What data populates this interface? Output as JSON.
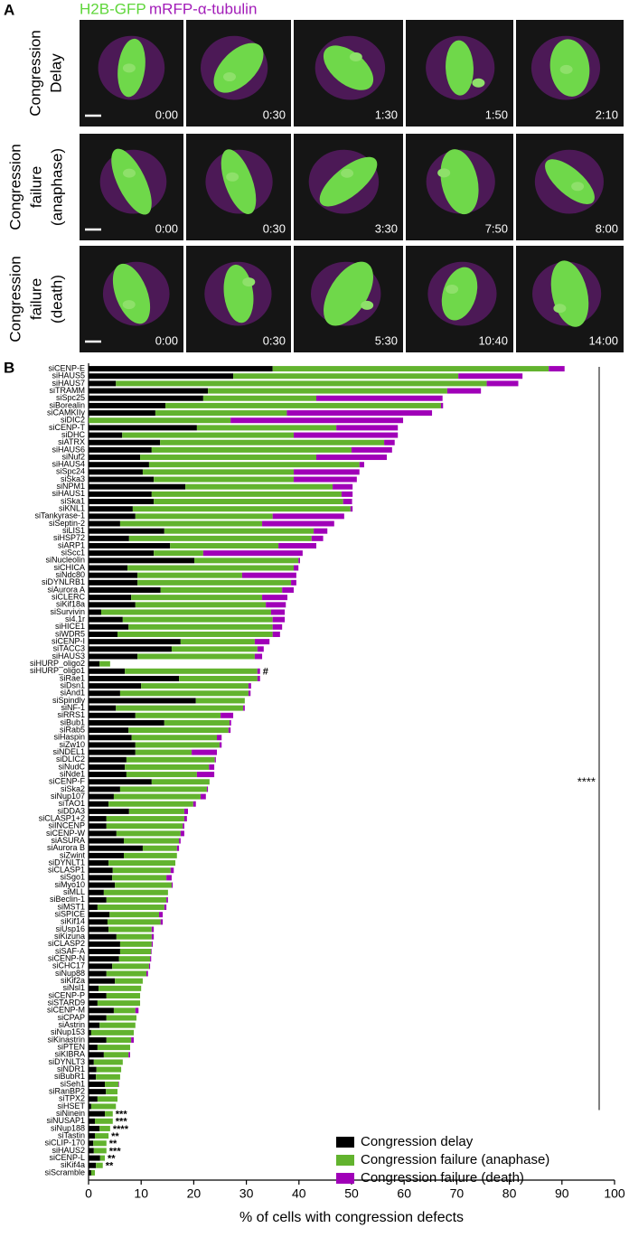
{
  "panel_a": {
    "label": "A",
    "channels": [
      {
        "name": "H2B-GFP",
        "color": "#5fd63a"
      },
      {
        "name": "mRFP-α-tubulin",
        "color": "#a21cb8"
      }
    ],
    "rows": [
      {
        "label_lines": [
          "Congression",
          "Delay"
        ],
        "times": [
          "0:00",
          "0:30",
          "1:30",
          "1:50",
          "2:10"
        ]
      },
      {
        "label_lines": [
          "Congression",
          "failure",
          "(anaphase)"
        ],
        "times": [
          "0:00",
          "0:30",
          "3:30",
          "7:50",
          "8:00"
        ]
      },
      {
        "label_lines": [
          "Congression",
          "failure",
          "(death)"
        ],
        "times": [
          "0:00",
          "0:30",
          "5:30",
          "10:40",
          "14:00"
        ]
      }
    ]
  },
  "chart_data": {
    "type": "bar",
    "orientation": "horizontal",
    "stacked": true,
    "panel_label": "B",
    "xlabel": "% of cells with congression defects",
    "xlim": [
      0,
      100
    ],
    "xticks": [
      0,
      10,
      20,
      30,
      40,
      50,
      60,
      70,
      80,
      90,
      100
    ],
    "legend": "lower right",
    "bracket_label": "****",
    "categories": [
      "siCENP-E",
      "siHAUS5",
      "siHAUS7",
      "siTRAMM",
      "siSpc25",
      "siBorealin",
      "siCAMKIIγ",
      "siDIC2",
      "siCENP-T",
      "siDHC",
      "siATRX",
      "siHAUS6",
      "siNuf2",
      "siHAUS4",
      "siSpc24",
      "siSka3",
      "siNPM1",
      "siHAUS1",
      "siSka1",
      "siKNL1",
      "siTankyrase-1",
      "siSeptin-2",
      "siLIS1",
      "siHSP72",
      "siARP1",
      "siScc1",
      "siNucleolin",
      "siCHICA",
      "siNdc80",
      "siDYNLRB1",
      "siAurora A",
      "siCLERC",
      "siKif18a",
      "siSurvivin",
      "si4.1r",
      "siHICE1",
      "siWDR5",
      "siCENP-I",
      "siTACC3",
      "siHAUS3",
      "siHURP_oligo2",
      "siHURP_oligo1",
      "siRae1",
      "siDsn1",
      "siAnd1",
      "siSpindly",
      "siNF-1",
      "siRRS1",
      "siBub1",
      "siRab5",
      "siHaspin",
      "siZw10",
      "siNDEL1",
      "siDLIC2",
      "siNudC",
      "siNde1",
      "siCENP-F",
      "siSka2",
      "siNup107",
      "siTAO1",
      "siDDA3",
      "siCLASP1+2",
      "siINCENP",
      "siCENP-W",
      "siASURA",
      "siAurora B",
      "siZwint",
      "siDYNLT1",
      "siCLASP1",
      "siSgo1",
      "siMyo10",
      "siMLL",
      "siBeclin-1",
      "siMST1",
      "siSPICE",
      "siKif14",
      "siUsp16",
      "siKizuna",
      "siCLASP2",
      "siSAF-A",
      "siCENP-N",
      "siCHC17",
      "siNup88",
      "siKif2a",
      "siNsl1",
      "siCENP-P",
      "siSTARD9",
      "siCENP-M",
      "siCPAP",
      "siAstrin",
      "siNup153",
      "siKinastrin",
      "siPTEN",
      "siKIBRA",
      "siDYNLT3",
      "siNDR1",
      "siBubR1",
      "siSeh1",
      "siRanBP2",
      "siTPX2",
      "siHSET",
      "siNinein",
      "siNUSAP1",
      "siNup188",
      "siTastin",
      "siCLIP-170",
      "siHAUS2",
      "siCENP-L",
      "siKif4a",
      "siScramble"
    ],
    "series": [
      {
        "name": "Congression delay",
        "color": "#000000",
        "values": [
          35,
          27.5,
          5.2,
          22.7,
          21.8,
          14.6,
          12.7,
          0,
          20.6,
          6.4,
          13.6,
          12,
          9.8,
          11.5,
          10.3,
          12.4,
          18.4,
          12,
          12.4,
          8.4,
          8.9,
          6,
          14.4,
          7.7,
          15.5,
          12.4,
          20.1,
          7.4,
          9.3,
          9.3,
          13.7,
          8.1,
          8.9,
          2.4,
          6.5,
          7.6,
          5.5,
          17.5,
          15.8,
          9.3,
          2.1,
          6.9,
          17.2,
          10,
          6,
          20.4,
          5.2,
          8.9,
          14.4,
          7.6,
          8.2,
          8.9,
          8.9,
          7.2,
          6.9,
          7.2,
          12,
          6,
          4.8,
          3.8,
          7.7,
          3.4,
          3.4,
          5.3,
          6.7,
          10.3,
          6.7,
          3.8,
          4.6,
          4.5,
          5,
          2.9,
          3.4,
          1.7,
          4,
          3.6,
          3.8,
          5.3,
          6,
          6,
          5.8,
          4.5,
          3.4,
          5,
          1.9,
          3.4,
          1.7,
          4.8,
          3.4,
          2.1,
          0.5,
          3.4,
          1.7,
          2.9,
          1,
          1.5,
          1.4,
          3.1,
          3.3,
          1.7,
          0.5,
          3.1,
          1.2,
          2.1,
          1.2,
          0.9,
          1,
          2.2,
          1.4,
          0.5
        ]
      },
      {
        "name": "Congression failure (anaphase)",
        "color": "#62b32e",
        "values": [
          52.5,
          42.8,
          70.5,
          45.5,
          21.5,
          52.4,
          25,
          27,
          26.5,
          32.6,
          42.6,
          38,
          33.5,
          40,
          28.7,
          26.6,
          28,
          36.1,
          36,
          41.4,
          26.1,
          27,
          28.4,
          34.7,
          20.6,
          9.4,
          19.8,
          31.6,
          19.9,
          29.2,
          23.1,
          24.9,
          24.8,
          32.3,
          28.5,
          27.4,
          29.5,
          14.1,
          16.3,
          22.3,
          2,
          25.2,
          14.9,
          20.4,
          24.4,
          9.3,
          24.2,
          16.2,
          12.4,
          19,
          16.2,
          16,
          10.7,
          16.8,
          16,
          13.4,
          11,
          16.5,
          16.5,
          16.1,
          10.5,
          14.8,
          14.5,
          12.2,
          10.5,
          6.5,
          10.1,
          12.7,
          11,
          10.3,
          10.8,
          12.2,
          11.4,
          12.7,
          9.4,
          10.1,
          8.2,
          6.7,
          6,
          5.9,
          5.9,
          7,
          7.6,
          5.3,
          8.1,
          6.4,
          8.1,
          4.1,
          5.7,
          6.8,
          8.1,
          4.7,
          6.2,
          4.7,
          5.5,
          4.7,
          4.6,
          2.6,
          2.2,
          3.8,
          4.7,
          1.5,
          3.4,
          2,
          2.6,
          2.5,
          2.4,
          0.9,
          1.3,
          0.7
        ]
      },
      {
        "name": "Congression failure (death)",
        "color": "#a000b8",
        "values": [
          3,
          12.2,
          6,
          6.4,
          24,
          0.4,
          27.6,
          32.8,
          11.7,
          19.8,
          2,
          7.7,
          13.4,
          0.9,
          12.5,
          12,
          3.8,
          2.1,
          1.7,
          0.4,
          13.6,
          13.7,
          2.6,
          2.2,
          7.2,
          18.9,
          0.3,
          0.9,
          10.3,
          1,
          2.2,
          4.8,
          3.8,
          2.6,
          2.3,
          1.8,
          1.4,
          2.8,
          1.2,
          1.4,
          0,
          0.5,
          0.5,
          0.5,
          0.4,
          0,
          0.3,
          2.4,
          0.3,
          0.4,
          0.9,
          0.4,
          4.8,
          0.2,
          1,
          3.3,
          0,
          0.2,
          1,
          0.5,
          0.7,
          0.5,
          0.3,
          0.7,
          0.3,
          0.4,
          0,
          0,
          0.6,
          1,
          0.2,
          0,
          0.3,
          0.4,
          0.7,
          0.4,
          0.4,
          0.4,
          0.2,
          0.1,
          0.2,
          0.2,
          0.3,
          0,
          0,
          0,
          0,
          0.6,
          0,
          0,
          0,
          0.5,
          0,
          0.3,
          0,
          0,
          0,
          0.1,
          0,
          0,
          0,
          0,
          0,
          0,
          0,
          0,
          0,
          0,
          0,
          0
        ]
      }
    ],
    "significance": [
      null,
      null,
      null,
      null,
      null,
      null,
      null,
      null,
      null,
      null,
      null,
      null,
      null,
      null,
      null,
      null,
      null,
      null,
      null,
      null,
      null,
      null,
      null,
      null,
      null,
      null,
      null,
      null,
      null,
      null,
      null,
      null,
      null,
      null,
      null,
      null,
      null,
      null,
      null,
      null,
      null,
      "#",
      null,
      null,
      null,
      null,
      null,
      null,
      null,
      null,
      null,
      null,
      null,
      null,
      null,
      null,
      null,
      null,
      null,
      null,
      null,
      null,
      null,
      null,
      null,
      null,
      null,
      null,
      null,
      null,
      null,
      null,
      null,
      null,
      null,
      null,
      null,
      null,
      null,
      null,
      null,
      null,
      null,
      null,
      null,
      null,
      null,
      null,
      null,
      null,
      null,
      null,
      null,
      null,
      null,
      null,
      null,
      null,
      null,
      null,
      null,
      "***",
      "***",
      "****",
      "**",
      "**",
      "***",
      "**",
      "**",
      null
    ]
  }
}
